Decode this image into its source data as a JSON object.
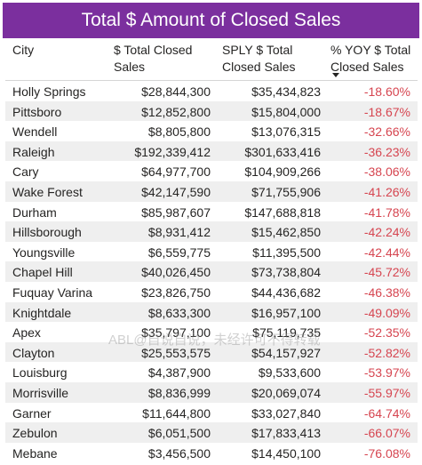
{
  "title": "Total $ Amount of Closed Sales",
  "columns": {
    "city": "City",
    "total_line1": "$ Total Closed",
    "total_line2": "Sales",
    "sply_line1": "SPLY $ Total",
    "sply_line2": "Closed Sales",
    "yoy_line1": "% YOY $ Total",
    "yoy_line2": "Closed Sales"
  },
  "rows": [
    {
      "city": "Holly Springs",
      "total": "$28,844,300",
      "sply": "$35,434,823",
      "yoy": "-18.60%"
    },
    {
      "city": "Pittsboro",
      "total": "$12,852,800",
      "sply": "$15,804,000",
      "yoy": "-18.67%"
    },
    {
      "city": "Wendell",
      "total": "$8,805,800",
      "sply": "$13,076,315",
      "yoy": "-32.66%"
    },
    {
      "city": "Raleigh",
      "total": "$192,339,412",
      "sply": "$301,633,416",
      "yoy": "-36.23%"
    },
    {
      "city": "Cary",
      "total": "$64,977,700",
      "sply": "$104,909,266",
      "yoy": "-38.06%"
    },
    {
      "city": "Wake Forest",
      "total": "$42,147,590",
      "sply": "$71,755,906",
      "yoy": "-41.26%"
    },
    {
      "city": "Durham",
      "total": "$85,987,607",
      "sply": "$147,688,818",
      "yoy": "-41.78%"
    },
    {
      "city": "Hillsborough",
      "total": "$8,931,412",
      "sply": "$15,462,850",
      "yoy": "-42.24%"
    },
    {
      "city": "Youngsville",
      "total": "$6,559,775",
      "sply": "$11,395,500",
      "yoy": "-42.44%"
    },
    {
      "city": "Chapel Hill",
      "total": "$40,026,450",
      "sply": "$73,738,804",
      "yoy": "-45.72%"
    },
    {
      "city": "Fuquay Varina",
      "total": "$23,826,750",
      "sply": "$44,436,682",
      "yoy": "-46.38%"
    },
    {
      "city": "Knightdale",
      "total": "$8,633,300",
      "sply": "$16,957,100",
      "yoy": "-49.09%"
    },
    {
      "city": "Apex",
      "total": "$35,797,100",
      "sply": "$75,119,735",
      "yoy": "-52.35%"
    },
    {
      "city": "Clayton",
      "total": "$25,553,575",
      "sply": "$54,157,927",
      "yoy": "-52.82%"
    },
    {
      "city": "Louisburg",
      "total": "$4,387,900",
      "sply": "$9,533,600",
      "yoy": "-53.97%"
    },
    {
      "city": "Morrisville",
      "total": "$8,836,999",
      "sply": "$20,069,074",
      "yoy": "-55.97%"
    },
    {
      "city": "Garner",
      "total": "$11,644,800",
      "sply": "$33,027,840",
      "yoy": "-64.74%"
    },
    {
      "city": "Zebulon",
      "total": "$6,051,500",
      "sply": "$17,833,413",
      "yoy": "-66.07%"
    },
    {
      "city": "Mebane",
      "total": "$3,456,500",
      "sply": "$14,450,100",
      "yoy": "-76.08%"
    }
  ],
  "watermark": "ABL@自说自说，未经许可不得转载",
  "colors": {
    "title_background": "#7b2f9e",
    "negative_value": "#d64550",
    "alt_row": "#efefef"
  },
  "icons": {
    "sort": "sort-descending-icon"
  }
}
